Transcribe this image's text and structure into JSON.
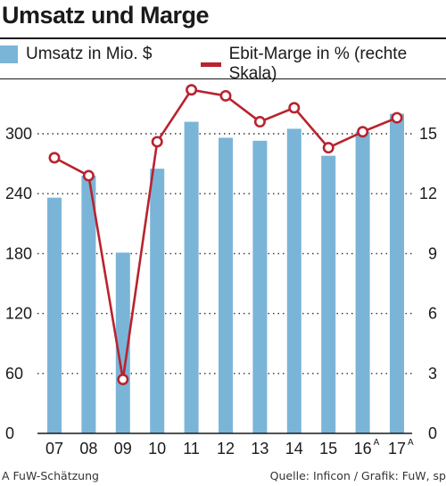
{
  "title": "Umsatz und Marge",
  "legend": {
    "bar_label": "Umsatz in Mio. $",
    "line_label": "Ebit-Marge in % (rechte Skala)"
  },
  "colors": {
    "bar": "#7ab5d8",
    "line": "#b8232f",
    "marker_fill": "#ffffff",
    "grid": "#333333"
  },
  "footer": {
    "left": "A FuW-Schätzung",
    "right": "Quelle: Inficon / Grafik: FuW, sp"
  },
  "chart_data": {
    "type": "bar",
    "title": "Umsatz und Marge",
    "categories": [
      "07",
      "08",
      "09",
      "10",
      "11",
      "12",
      "13",
      "14",
      "15",
      "16",
      "17"
    ],
    "category_superscripts": [
      "",
      "",
      "",
      "",
      "",
      "",
      "",
      "",
      "",
      "A",
      "A"
    ],
    "series": [
      {
        "name": "Umsatz in Mio. $",
        "type": "bar",
        "axis": "left",
        "values": [
          236,
          258,
          181,
          265,
          312,
          296,
          293,
          305,
          278,
          302,
          320
        ]
      },
      {
        "name": "Ebit-Marge in % (rechte Skala)",
        "type": "line",
        "axis": "right",
        "values": [
          13.8,
          12.9,
          2.7,
          14.6,
          17.2,
          16.9,
          15.6,
          16.3,
          14.3,
          15.1,
          15.8
        ]
      }
    ],
    "left_axis": {
      "ylim": [
        0,
        330
      ],
      "ticks": [
        0,
        60,
        120,
        180,
        240,
        300
      ]
    },
    "right_axis": {
      "ylim": [
        0,
        16.5
      ],
      "ticks": [
        0,
        3,
        6,
        9,
        12,
        15
      ]
    },
    "grid": true,
    "grid_style": "dotted",
    "legend_position": "top"
  }
}
